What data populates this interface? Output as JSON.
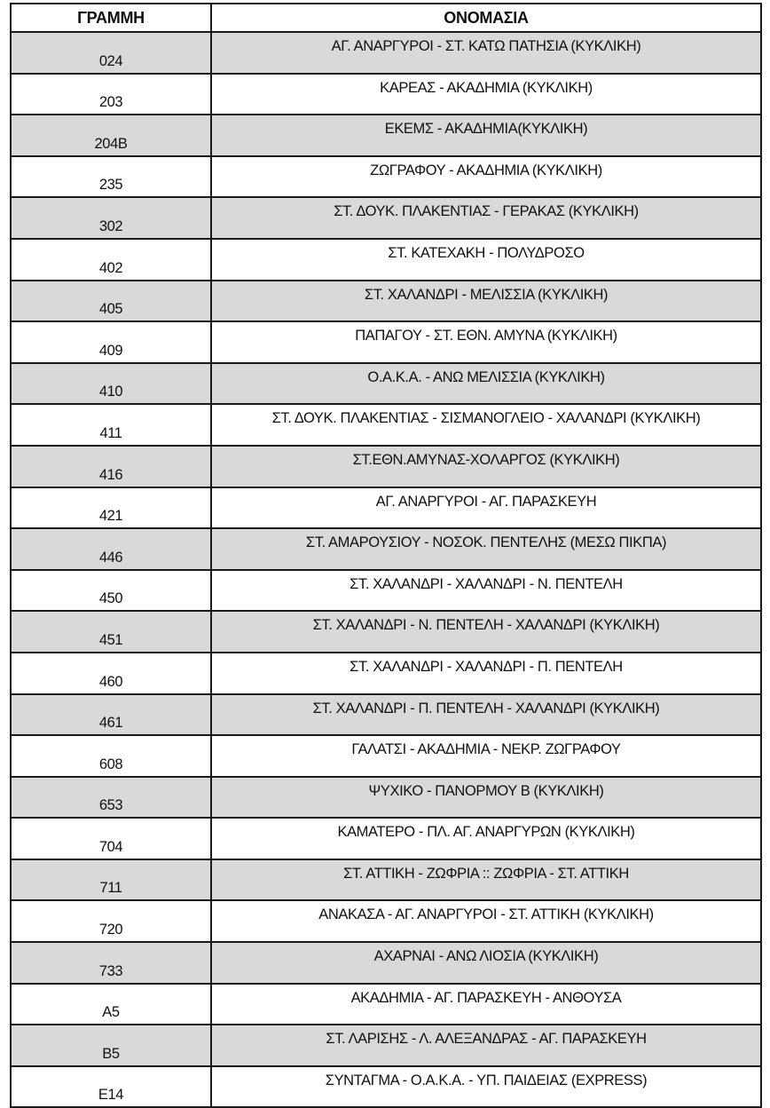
{
  "headers": {
    "line": "ΓΡΑΜΜΗ",
    "name": "ΟΝΟΜΑΣΙΑ"
  },
  "row_shading_color": "#d9d9d9",
  "rows": [
    {
      "line": "024",
      "name": "ΑΓ. ΑΝΑΡΓΥΡΟΙ - ΣΤ. ΚΑΤΩ ΠΑΤΗΣΙΑ (ΚΥΚΛΙΚΗ)"
    },
    {
      "line": "203",
      "name": "ΚΑΡΕΑΣ - ΑΚΑΔΗΜΙΑ (ΚΥΚΛΙΚΗ)"
    },
    {
      "line": "204Β",
      "name": "ΕΚΕΜΣ - ΑΚΑΔΗΜΙΑ(ΚΥΚΛΙΚΗ)"
    },
    {
      "line": "235",
      "name": "ΖΩΓΡΑΦΟΥ - ΑΚΑΔΗΜΙΑ (ΚΥΚΛΙΚΗ)"
    },
    {
      "line": "302",
      "name": "ΣΤ. ΔΟΥΚ. ΠΛΑΚΕΝΤΙΑΣ - ΓΕΡΑΚΑΣ (ΚΥΚΛΙΚΗ)"
    },
    {
      "line": "402",
      "name": "ΣΤ. ΚΑΤΕΧΑΚΗ - ΠΟΛΥΔΡΟΣΟ"
    },
    {
      "line": "405",
      "name": "ΣΤ. ΧΑΛΑΝΔΡΙ - ΜΕΛΙΣΣΙΑ (ΚΥΚΛΙΚΗ)"
    },
    {
      "line": "409",
      "name": "ΠΑΠΑΓΟΥ - ΣΤ. ΕΘΝ. ΑΜΥΝΑ  (ΚΥΚΛΙΚΗ)"
    },
    {
      "line": "410",
      "name": "Ο.Α.Κ.Α. - ΑΝΩ ΜΕΛΙΣΣΙΑ (ΚΥΚΛΙΚΗ)"
    },
    {
      "line": "411",
      "name": "ΣΤ. ΔΟΥΚ. ΠΛΑΚΕΝΤΙΑΣ - ΣΙΣΜΑΝΟΓΛΕΙΟ - ΧΑΛΑΝΔΡΙ (ΚΥΚΛΙΚΗ)"
    },
    {
      "line": "416",
      "name": "ΣΤ.ΕΘΝ.ΑΜΥΝΑΣ-ΧΟΛΑΡΓΟΣ (ΚΥΚΛΙΚΗ)"
    },
    {
      "line": "421",
      "name": "ΑΓ. ΑΝΑΡΓΥΡΟΙ - ΑΓ. ΠΑΡΑΣΚΕΥΗ"
    },
    {
      "line": "446",
      "name": "ΣΤ. ΑΜΑΡΟΥΣΙΟΥ - ΝΟΣΟΚ. ΠΕΝΤΕΛΗΣ (ΜΕΣΩ ΠΙΚΠΑ)"
    },
    {
      "line": "450",
      "name": "ΣΤ. ΧΑΛΑΝΔΡΙ - ΧΑΛΑΝΔΡΙ - Ν. ΠΕΝΤΕΛΗ"
    },
    {
      "line": "451",
      "name": "ΣΤ. ΧΑΛΑΝΔΡΙ - Ν. ΠΕΝΤΕΛΗ - ΧΑΛΑΝΔΡΙ (ΚΥΚΛΙΚΗ)"
    },
    {
      "line": "460",
      "name": "ΣΤ. ΧΑΛΑΝΔΡΙ - ΧΑΛΑΝΔΡΙ - Π. ΠΕΝΤΕΛΗ"
    },
    {
      "line": "461",
      "name": "ΣΤ. ΧΑΛΑΝΔΡΙ - Π. ΠΕΝΤΕΛΗ - ΧΑΛΑΝΔΡΙ (ΚΥΚΛΙΚΗ)"
    },
    {
      "line": "608",
      "name": "ΓΑΛΑΤΣΙ - ΑΚΑΔΗΜΙΑ - ΝΕΚΡ. ΖΩΓΡΑΦΟΥ"
    },
    {
      "line": "653",
      "name": "ΨΥΧΙΚΟ - ΠΑΝΟΡΜΟΥ Β (ΚΥΚΛΙΚΗ)"
    },
    {
      "line": "704",
      "name": "ΚΑΜΑΤΕΡΟ - ΠΛ. ΑΓ. ΑΝΑΡΓΥΡΩΝ (ΚΥΚΛΙΚΗ)"
    },
    {
      "line": "711",
      "name": "ΣΤ. ΑΤΤΙΚΗ - ΖΩΦΡΙΑ :: ΖΩΦΡΙΑ - ΣΤ. ΑΤΤΙΚΗ"
    },
    {
      "line": "720",
      "name": "ΑΝΑΚΑΣΑ - ΑΓ. ΑΝΑΡΓΥΡΟΙ - ΣΤ. ΑΤΤΙΚΗ (ΚΥΚΛΙΚΗ)"
    },
    {
      "line": "733",
      "name": "ΑΧΑΡΝΑΙ - ΑΝΩ ΛΙΟΣΙΑ (ΚΥΚΛΙΚΗ)"
    },
    {
      "line": "Α5",
      "name": "ΑΚΑΔΗΜΙΑ - ΑΓ. ΠΑΡΑΣΚΕΥΗ - ΑΝΘΟΥΣΑ"
    },
    {
      "line": "Β5",
      "name": "ΣΤ. ΛΑΡΙΣΗΣ - Λ. ΑΛΕΞΑΝΔΡΑΣ - ΑΓ. ΠΑΡΑΣΚΕΥΗ"
    },
    {
      "line": "Ε14",
      "name": "ΣΥΝΤΑΓΜΑ - Ο.Α.Κ.Α. - ΥΠ. ΠΑΙΔΕΙΑΣ (EXPRESS)"
    }
  ]
}
